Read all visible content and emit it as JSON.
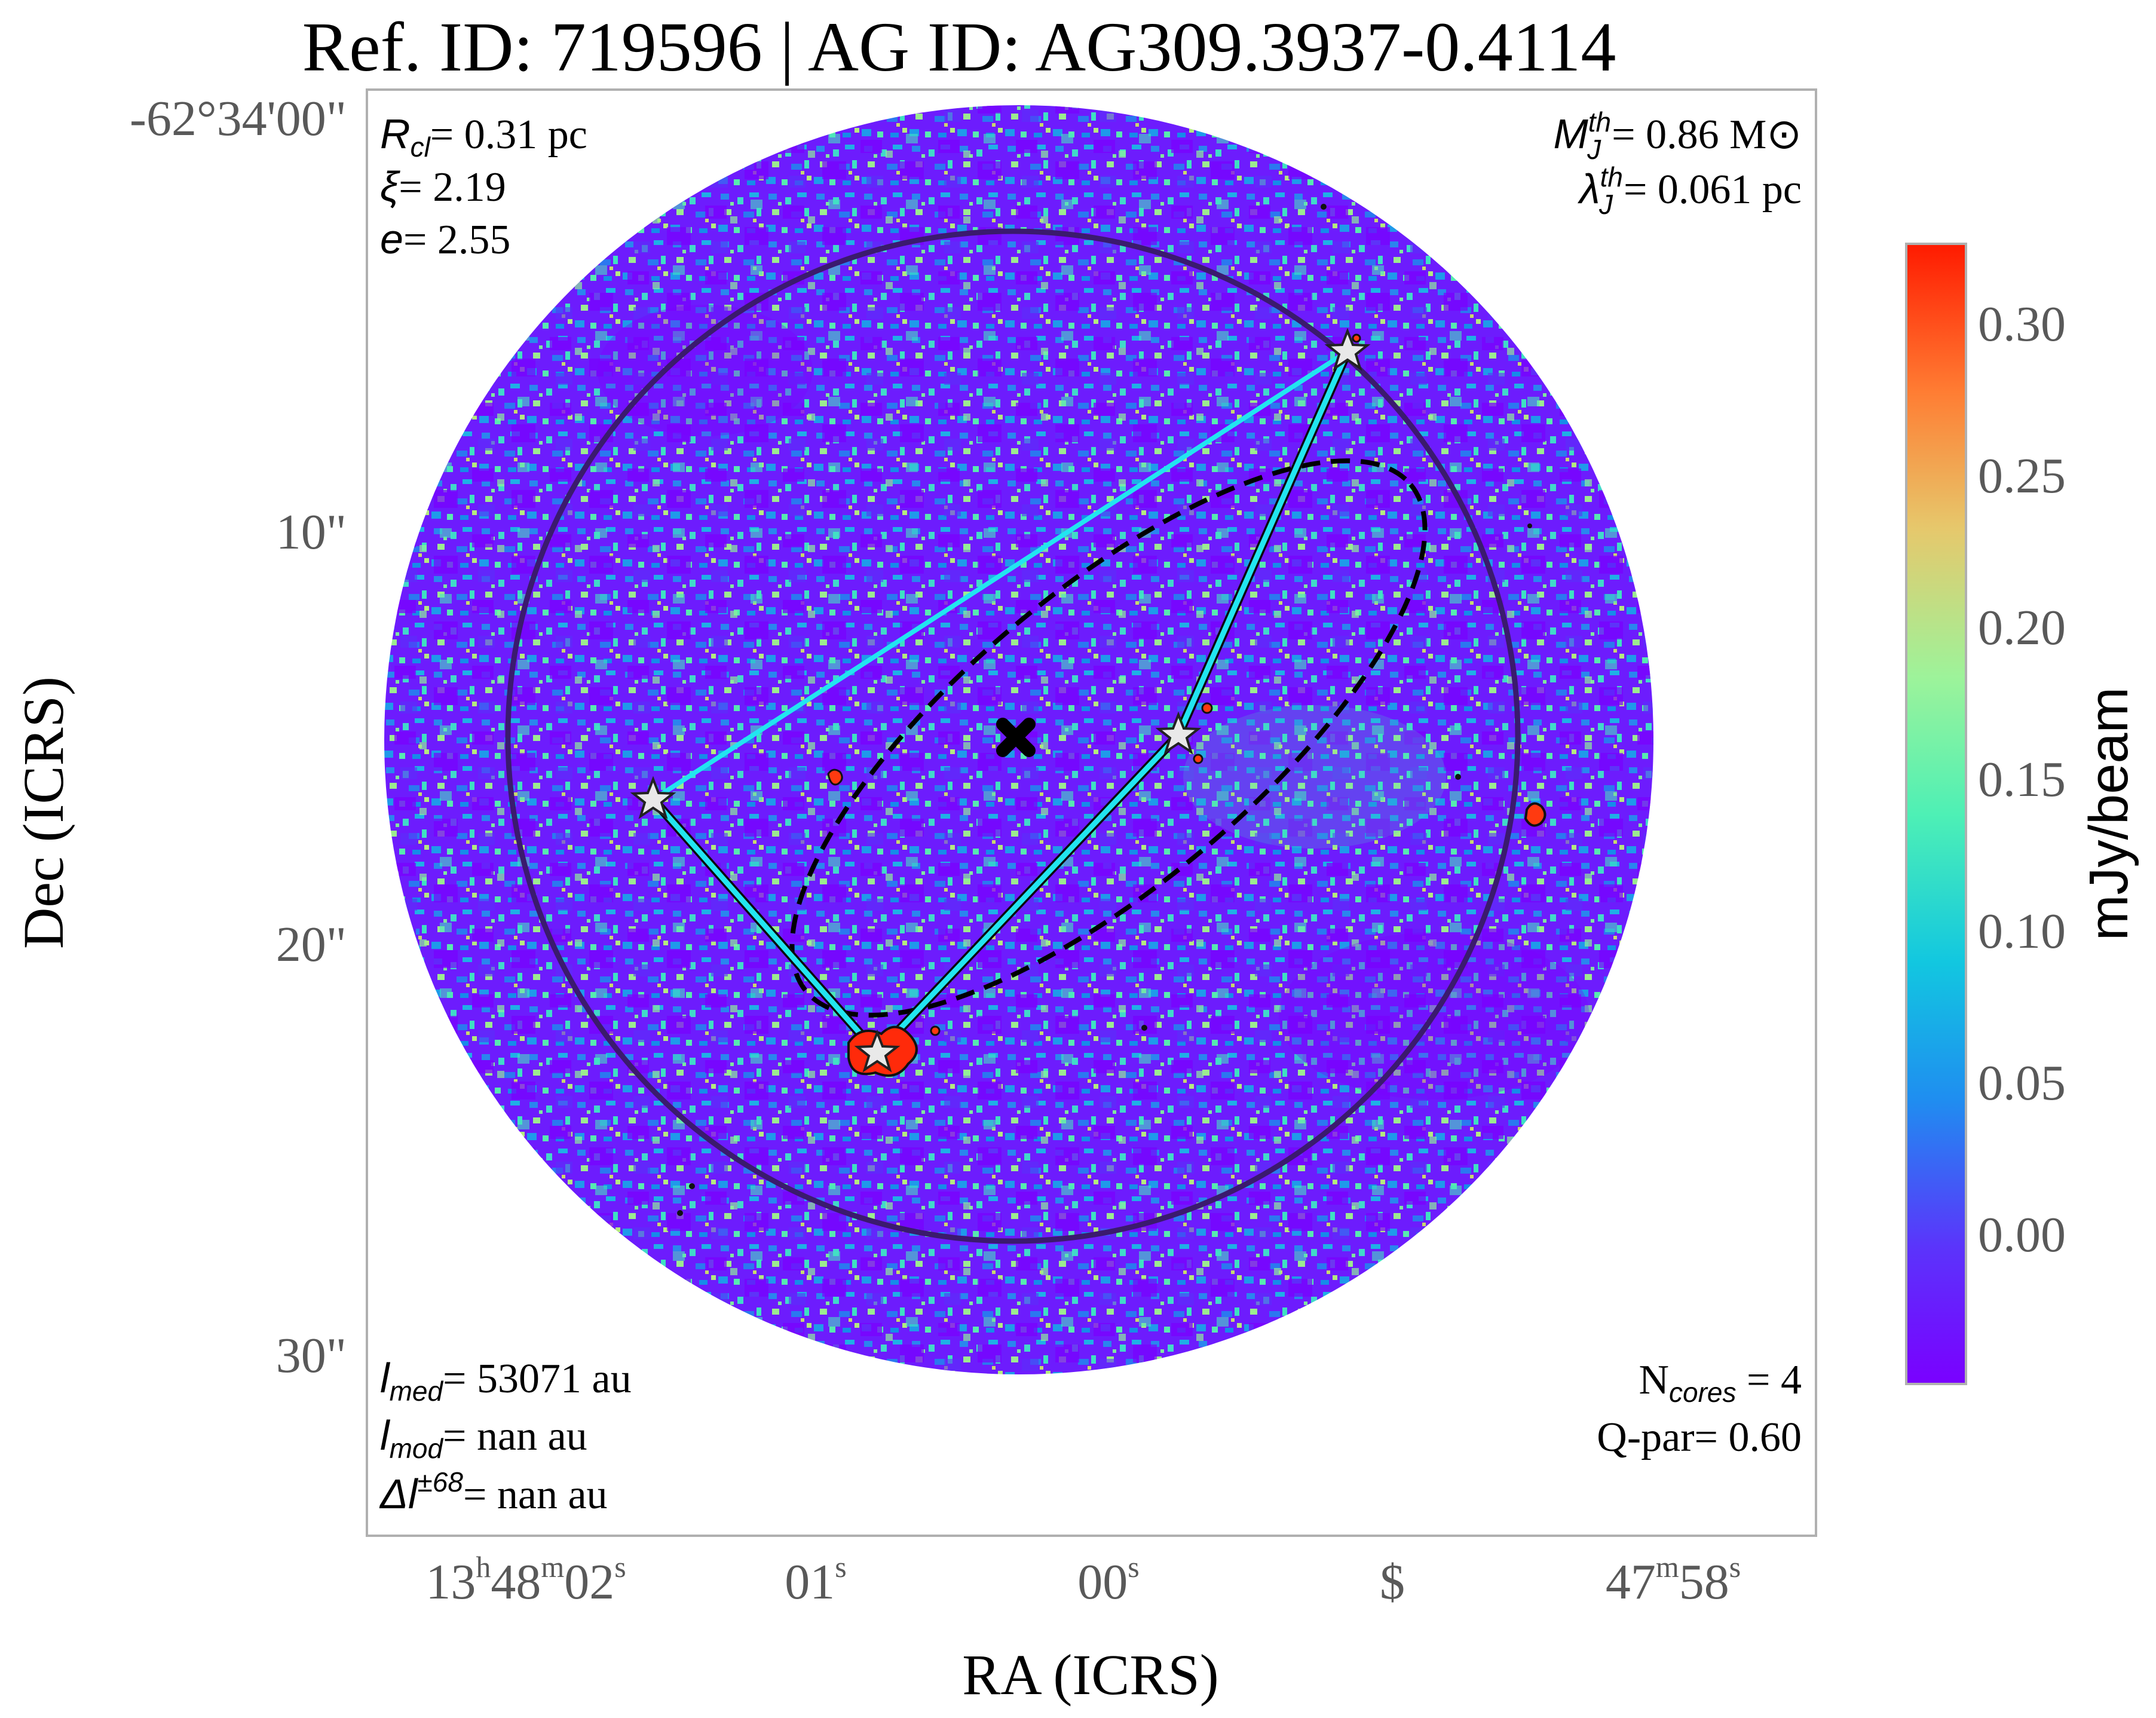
{
  "title": "Ref. ID: 719596 | AG ID: AG309.3937-0.4114",
  "axes": {
    "xlabel": "RA (ICRS)",
    "ylabel": "Dec (ICRS)",
    "dec_ticks": [
      "-62°34'00\"",
      "10\"",
      "20\"",
      "30\""
    ],
    "ra_ticks": [
      {
        "main": "13",
        "h": "h",
        "mid": "48",
        "m": "m",
        "sec": "02",
        "s": "s"
      },
      {
        "main": "01",
        "s": "s"
      },
      {
        "main": "00",
        "s": "s"
      },
      {
        "main": "$"
      },
      {
        "main": "47",
        "m": "m",
        "sec": "58",
        "s": "s"
      }
    ]
  },
  "annotations": {
    "top_left": {
      "r_symbol": "R",
      "r_sub": "cl",
      "r_value": "= 0.31 pc",
      "xi_symbol": "ξ",
      "xi_value": "= 2.19",
      "e_symbol": "e",
      "e_value": "= 2.55"
    },
    "top_right": {
      "mj_symbol": "M",
      "mj_sub": "J",
      "mj_sup": "th",
      "mj_value": "= 0.86 M⊙",
      "lj_symbol": "λ",
      "lj_sub": "J",
      "lj_sup": "th",
      "lj_value": "= 0.061 pc"
    },
    "bottom_left": {
      "lmed_symbol": "l",
      "lmed_sub": "med",
      "lmed_value": "= 53071 au",
      "lmod_symbol": "l",
      "lmod_sub": "mod",
      "lmod_value": "= nan au",
      "dl_symbol": "Δl",
      "dl_sup": "±68",
      "dl_value": "= nan au"
    },
    "bottom_right": {
      "ncores_main": "N",
      "ncores_sub": "cores",
      "ncores_value": " = 4",
      "qpar": "Q-par= 0.60"
    }
  },
  "colorbar": {
    "label": "mJy/beam",
    "ticks": [
      "0.30",
      "0.25",
      "0.20",
      "0.15",
      "0.10",
      "0.05",
      "0.00"
    ],
    "colors": [
      "#7a00ff",
      "#3d6bf7",
      "#11b3e8",
      "#3ce8c1",
      "#8cf59b",
      "#c6e07a",
      "#f5b54c",
      "#ff6a2a",
      "#ff1a00"
    ]
  },
  "map": {
    "background_colors": [
      "#7a0bff",
      "#5a3cf8",
      "#1fa3ea",
      "#45e6bd",
      "#9ff08a"
    ],
    "cores": [
      "core-1",
      "core-2",
      "core-3",
      "core-4"
    ],
    "marker": "centroid-x-marker"
  }
}
